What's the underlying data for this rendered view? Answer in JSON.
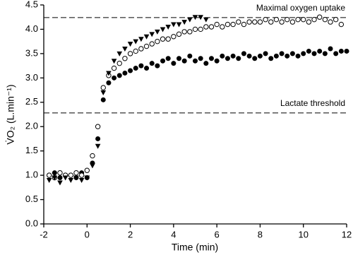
{
  "chart_data": {
    "type": "scatter",
    "x_label": "Time (min)",
    "y_label": "V̇O₂ (L.min⁻¹)",
    "xlim": [
      -2,
      12
    ],
    "xticks": [
      -2,
      0,
      2,
      4,
      6,
      8,
      10,
      12
    ],
    "ylim": [
      0,
      4.5
    ],
    "yticks": [
      {
        "value": 0,
        "label": "0.0"
      },
      0.5,
      {
        "value": 1,
        "label": "1.0"
      },
      1.5,
      {
        "value": 2,
        "label": "2.0"
      },
      2.5,
      {
        "value": 3,
        "label": "3.0"
      },
      3.5,
      {
        "value": 4,
        "label": "4.0"
      },
      4.5
    ],
    "reference_lines": [
      {
        "label": "Maximal oxygen uptake",
        "value": 4.24
      },
      {
        "label": "Lactate threshold",
        "value": 2.28
      }
    ],
    "series": [
      {
        "marker": "filled-circle",
        "color": "#000000",
        "x": [
          -1.75,
          -1.5,
          -1.25,
          -1,
          -0.75,
          -0.5,
          -0.25,
          0,
          0.25,
          0.5,
          0.75,
          1,
          1.25,
          1.5,
          1.75,
          2,
          2.25,
          2.5,
          2.75,
          3,
          3.25,
          3.5,
          3.75,
          4,
          4.25,
          4.5,
          4.75,
          5,
          5.25,
          5.5,
          5.75,
          6,
          6.25,
          6.5,
          6.75,
          7,
          7.25,
          7.5,
          7.75,
          8,
          8.25,
          8.5,
          8.75,
          9,
          9.25,
          9.5,
          9.75,
          10,
          10.25,
          10.5,
          10.75,
          11,
          11.25,
          11.5,
          11.75,
          12
        ],
        "values": [
          1.0,
          1.05,
          0.95,
          1.0,
          1.0,
          0.95,
          1.05,
          0.95,
          1.25,
          1.75,
          2.55,
          2.9,
          3.0,
          3.05,
          3.1,
          3.15,
          3.2,
          3.25,
          3.2,
          3.3,
          3.25,
          3.35,
          3.4,
          3.3,
          3.4,
          3.35,
          3.45,
          3.35,
          3.4,
          3.3,
          3.4,
          3.35,
          3.45,
          3.4,
          3.45,
          3.4,
          3.5,
          3.45,
          3.4,
          3.45,
          3.5,
          3.4,
          3.45,
          3.5,
          3.45,
          3.5,
          3.45,
          3.5,
          3.55,
          3.5,
          3.55,
          3.5,
          3.6,
          3.5,
          3.55,
          3.55
        ]
      },
      {
        "marker": "open-circle",
        "color": "#000000",
        "x": [
          -1.75,
          -1.5,
          -1.25,
          -1,
          -0.75,
          -0.5,
          -0.25,
          0,
          0.25,
          0.5,
          0.75,
          1,
          1.25,
          1.5,
          1.75,
          2,
          2.25,
          2.5,
          2.75,
          3,
          3.25,
          3.5,
          3.75,
          4,
          4.25,
          4.5,
          4.75,
          5,
          5.25,
          5.5,
          5.75,
          6,
          6.25,
          6.5,
          6.75,
          7,
          7.25,
          7.5,
          7.75,
          8,
          8.25,
          8.5,
          8.75,
          9,
          9.25,
          9.5,
          9.75,
          10,
          10.25,
          10.5,
          10.75,
          11,
          11.25,
          11.5,
          11.75
        ],
        "values": [
          1.0,
          0.95,
          1.05,
          1.0,
          1.0,
          1.05,
          1.0,
          1.1,
          1.4,
          2.0,
          2.8,
          3.05,
          3.2,
          3.3,
          3.4,
          3.5,
          3.55,
          3.6,
          3.65,
          3.7,
          3.75,
          3.8,
          3.8,
          3.85,
          3.9,
          3.95,
          3.95,
          4.0,
          4.0,
          4.05,
          4.05,
          4.1,
          4.05,
          4.1,
          4.1,
          4.15,
          4.1,
          4.15,
          4.15,
          4.15,
          4.2,
          4.15,
          4.2,
          4.15,
          4.2,
          4.15,
          4.2,
          4.2,
          4.15,
          4.2,
          4.25,
          4.2,
          4.15,
          4.2,
          4.1
        ]
      },
      {
        "marker": "triangle-down",
        "color": "#000000",
        "x": [
          -1.75,
          -1.5,
          -1.25,
          -1,
          -0.75,
          -0.5,
          -0.25,
          0,
          0.25,
          0.5,
          0.75,
          1,
          1.25,
          1.5,
          1.75,
          2,
          2.25,
          2.5,
          2.75,
          3,
          3.25,
          3.5,
          3.75,
          4,
          4.25,
          4.5,
          4.75,
          5,
          5.25,
          5.5
        ],
        "values": [
          0.9,
          0.95,
          0.85,
          0.95,
          0.9,
          0.95,
          0.9,
          0.95,
          1.2,
          1.6,
          2.7,
          3.1,
          3.35,
          3.5,
          3.6,
          3.7,
          3.75,
          3.8,
          3.85,
          3.9,
          3.95,
          4.0,
          4.05,
          4.1,
          4.1,
          4.15,
          4.2,
          4.25,
          4.25,
          4.2
        ]
      }
    ]
  }
}
